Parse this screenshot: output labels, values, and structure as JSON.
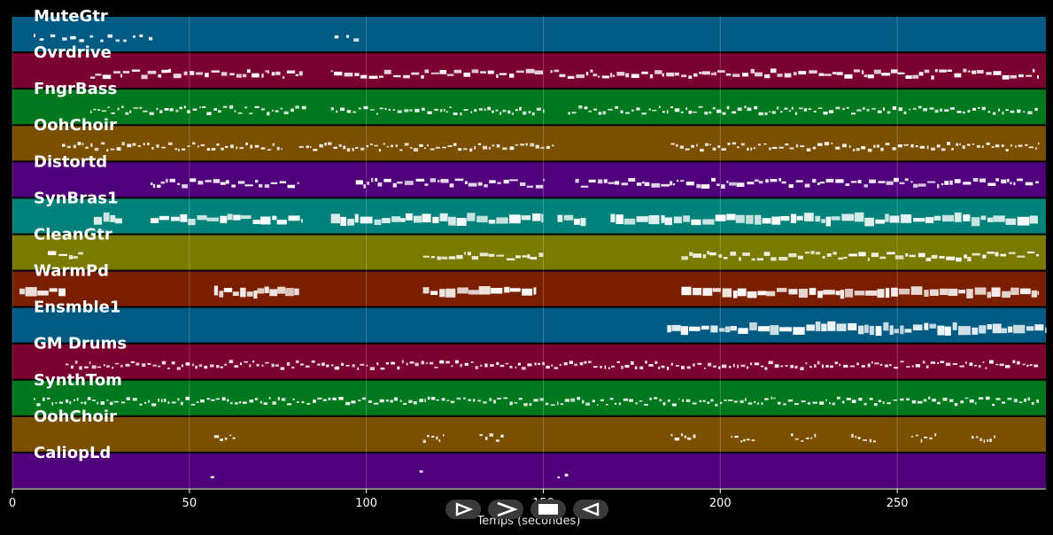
{
  "chart_data": {
    "type": "piano-roll",
    "xlabel": "Temps (secondes)",
    "xlim": [
      0,
      292
    ],
    "xticks": [
      0,
      50,
      100,
      150,
      200,
      250
    ],
    "grid": true,
    "tracks": [
      {
        "name": "MuteGtr",
        "color": "#005a82",
        "segments": [
          [
            6,
            40
          ],
          [
            91,
            98
          ]
        ],
        "style": "sparse"
      },
      {
        "name": "Ovrdrive",
        "color": "#7a0030",
        "segments": [
          [
            22,
            82
          ],
          [
            90,
            150
          ],
          [
            152,
            164
          ],
          [
            164,
            290
          ]
        ],
        "style": "dense"
      },
      {
        "name": "FngrBass",
        "color": "#00781e",
        "segments": [
          [
            22,
            83
          ],
          [
            90,
            150
          ],
          [
            157,
            290
          ]
        ],
        "style": "fine"
      },
      {
        "name": "OohChoir",
        "color": "#7a5000",
        "segments": [
          [
            14,
            76
          ],
          [
            81,
            153
          ],
          [
            186,
            290
          ]
        ],
        "style": "fine"
      },
      {
        "name": "Distortd",
        "color": "#50007a",
        "segments": [
          [
            39,
            81
          ],
          [
            97,
            150
          ],
          [
            159,
            290
          ]
        ],
        "style": "dense"
      },
      {
        "name": "SynBras1",
        "color": "#00827a",
        "segments": [
          [
            23,
            31
          ],
          [
            39,
            82
          ],
          [
            90,
            150
          ],
          [
            154,
            162
          ],
          [
            169,
            290
          ]
        ],
        "style": "block"
      },
      {
        "name": "CleanGtr",
        "color": "#7a7a00",
        "segments": [
          [
            10,
            20
          ],
          [
            116,
            150
          ],
          [
            189,
            290
          ]
        ],
        "style": "dense"
      },
      {
        "name": "WarmPd",
        "color": "#7a1e00",
        "segments": [
          [
            2,
            15
          ],
          [
            57,
            81
          ],
          [
            116,
            148
          ],
          [
            189,
            290
          ]
        ],
        "style": "block"
      },
      {
        "name": "Ensmble1",
        "color": "#005a82",
        "segments": [
          [
            185,
            292
          ]
        ],
        "style": "block"
      },
      {
        "name": "GM Drums",
        "color": "#7a0030",
        "segments": [
          [
            15,
            290
          ]
        ],
        "style": "fine"
      },
      {
        "name": "SynthTom",
        "color": "#00781e",
        "segments": [
          [
            6,
            290
          ]
        ],
        "style": "fine"
      },
      {
        "name": "OohChoir",
        "color": "#7a5000",
        "segments": [
          [
            57,
            63
          ],
          [
            116,
            122
          ],
          [
            132,
            139
          ],
          [
            186,
            193
          ],
          [
            203,
            210
          ],
          [
            220,
            227
          ],
          [
            237,
            244
          ],
          [
            254,
            261
          ],
          [
            271,
            278
          ]
        ],
        "style": "fine"
      },
      {
        "name": "CaliopLd",
        "color": "#50007a",
        "segments": [
          [
            56,
            57
          ],
          [
            115,
            116
          ],
          [
            154,
            157
          ]
        ],
        "style": "sparse"
      }
    ]
  },
  "controls": [
    {
      "name": "play-button",
      "icon": "play-icon"
    },
    {
      "name": "next-button",
      "icon": "chevron-right-icon"
    },
    {
      "name": "stop-button",
      "icon": "stop-icon"
    },
    {
      "name": "rewind-button",
      "icon": "rewind-icon"
    }
  ]
}
